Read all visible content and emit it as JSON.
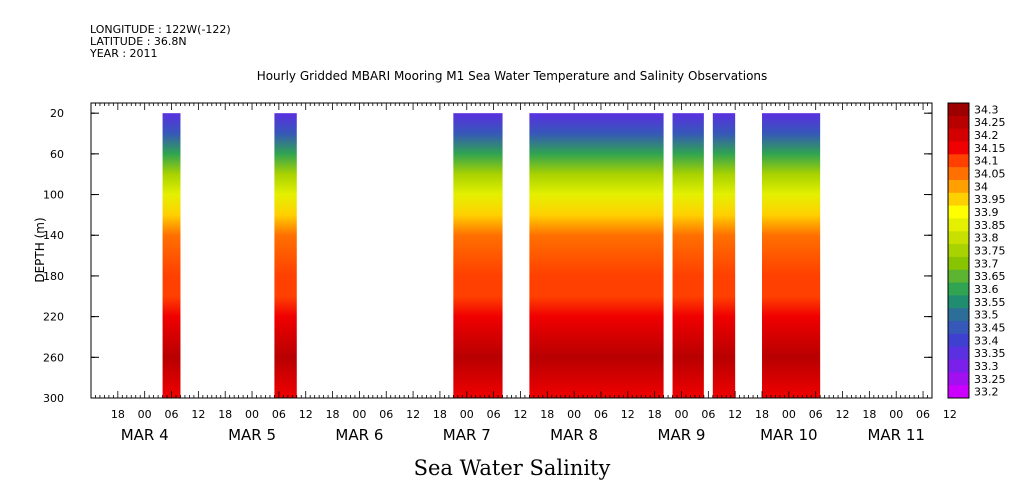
{
  "header": {
    "longitude": "LONGITUDE : 122W(-122)",
    "latitude": "LATITUDE : 36.8N",
    "year": "YEAR : 2011"
  },
  "chart_data": {
    "type": "heatmap",
    "title": "Hourly Gridded MBARI Mooring M1 Sea Water Temperature and Salinity Observations",
    "ylabel": "DEPTH (m)",
    "xlabel": "Sea Water Salinity",
    "y_axis": {
      "range": [
        300,
        0
      ],
      "ticks": [
        20,
        60,
        100,
        140,
        180,
        220,
        260,
        300
      ],
      "inverted": true
    },
    "x_axis": {
      "start": "MAR 4 12:00",
      "end": "MAR 11 23:00",
      "hour_ticks": [
        "18",
        "00",
        "06",
        "12",
        "18",
        "00",
        "06",
        "12",
        "18",
        "00",
        "06",
        "12",
        "18",
        "00",
        "06",
        "12",
        "18",
        "00",
        "06",
        "12",
        "18",
        "00",
        "06",
        "12",
        "18",
        "00",
        "06",
        "12",
        "18",
        "00",
        "06",
        "12"
      ],
      "date_labels": [
        "MAR  4",
        "MAR  5",
        "MAR  6",
        "MAR  7",
        "MAR  8",
        "MAR  9",
        "MAR 10",
        "MAR 11"
      ]
    },
    "colorbar": {
      "levels": [
        "34.3",
        "34.25",
        "34.2",
        "34.15",
        "34.1",
        "34.05",
        "34",
        "33.95",
        "33.9",
        "33.85",
        "33.8",
        "33.75",
        "33.7",
        "33.65",
        "33.6",
        "33.55",
        "33.5",
        "33.45",
        "33.4",
        "33.35",
        "33.3",
        "33.25",
        "33.2"
      ],
      "colors": [
        "#9c0000",
        "#b80000",
        "#d40000",
        "#f00000",
        "#ff4000",
        "#ff7000",
        "#ffa000",
        "#ffd000",
        "#ffff00",
        "#e4f000",
        "#c8e000",
        "#a8d200",
        "#88c400",
        "#5cb430",
        "#30a450",
        "#208c70",
        "#2c6e98",
        "#3658b8",
        "#4040d0",
        "#5a30e0",
        "#7a20ea",
        "#a010f0",
        "#cc00ff"
      ]
    },
    "segments": [
      {
        "start_hour": 16,
        "end_hour": 20
      },
      {
        "start_hour": 41,
        "end_hour": 46
      },
      {
        "start_hour": 81,
        "end_hour": 92
      },
      {
        "start_hour": 98,
        "end_hour": 128
      },
      {
        "start_hour": 130,
        "end_hour": 137
      },
      {
        "start_hour": 139,
        "end_hour": 144
      },
      {
        "start_hour": 150,
        "end_hour": 163
      }
    ],
    "profile": [
      {
        "depth": 20,
        "value": 33.35
      },
      {
        "depth": 40,
        "value": 33.45
      },
      {
        "depth": 60,
        "value": 33.6
      },
      {
        "depth": 80,
        "value": 33.75
      },
      {
        "depth": 100,
        "value": 33.85
      },
      {
        "depth": 120,
        "value": 33.95
      },
      {
        "depth": 140,
        "value": 34.05
      },
      {
        "depth": 180,
        "value": 34.08
      },
      {
        "depth": 200,
        "value": 34.1
      },
      {
        "depth": 220,
        "value": 34.15
      },
      {
        "depth": 240,
        "value": 34.2
      },
      {
        "depth": 260,
        "value": 34.25
      },
      {
        "depth": 280,
        "value": 34.2
      },
      {
        "depth": 300,
        "value": 34.15
      }
    ]
  }
}
